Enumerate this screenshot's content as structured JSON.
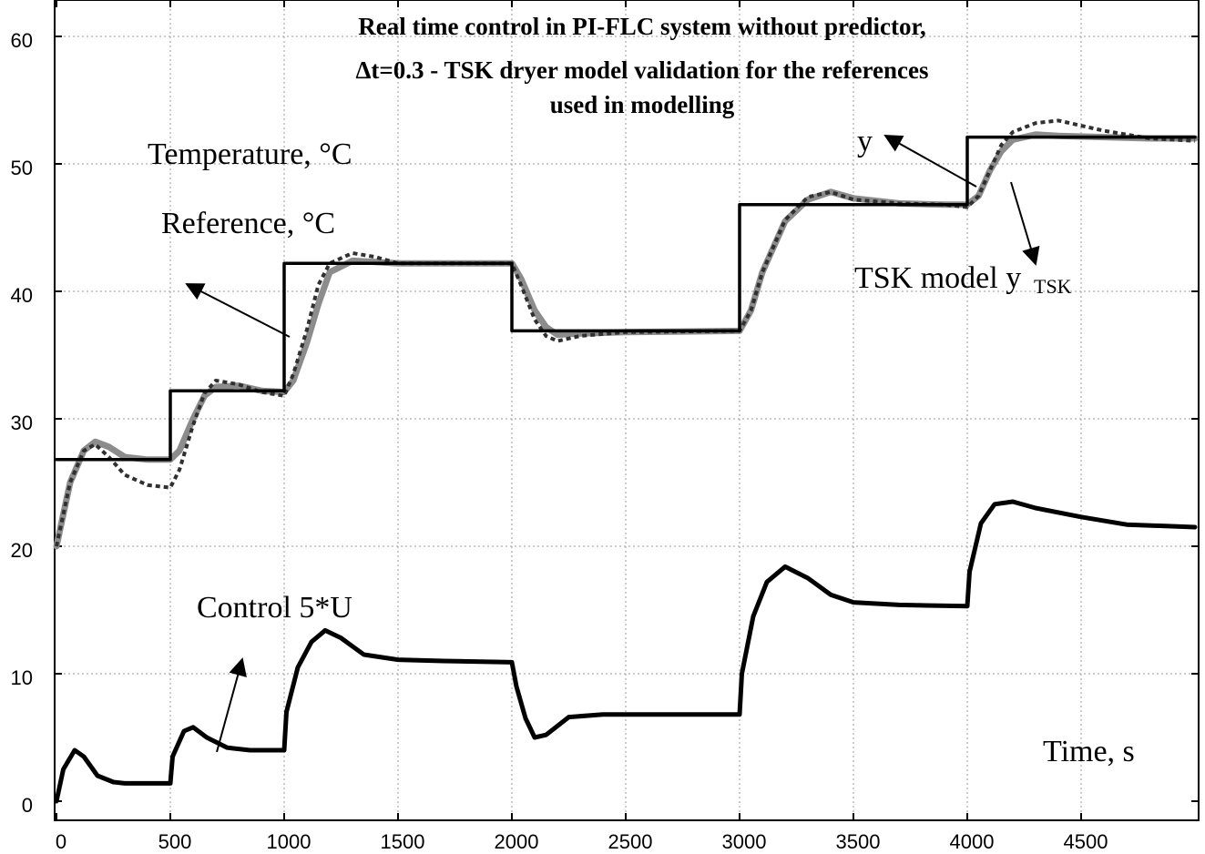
{
  "chart_data": {
    "type": "line",
    "title_lines": [
      "Real time control in PI-FLC system without predictor,",
      "Δt=0.3 - TSK dryer model validation for the references",
      "used in modelling"
    ],
    "xlim": [
      0,
      5000
    ],
    "ylim": [
      0,
      65
    ],
    "x_ticks": [
      0,
      500,
      1000,
      1500,
      2000,
      2500,
      3000,
      3500,
      4000,
      4500
    ],
    "x_tick_labels": [
      "0",
      "500",
      "1000",
      "1500",
      "2000",
      "2500",
      "3000",
      "3500",
      "4000",
      "4500"
    ],
    "y_ticks": [
      0,
      10,
      20,
      30,
      40,
      50,
      60
    ],
    "y_tick_labels": [
      "0",
      "10",
      "20",
      "30",
      "40",
      "50",
      "60"
    ],
    "grid": true,
    "annotations": {
      "temperature": "Temperature, °C",
      "reference": "Reference, °C",
      "y": "y",
      "tsk_model": "TSK model y",
      "tsk_sub": "TSK",
      "control": "Control 5*U",
      "time": "Time, s"
    },
    "series": [
      {
        "style": "reference-step",
        "color": "#000000",
        "x": [
          0,
          500,
          500,
          1000,
          1000,
          2000,
          2000,
          3000,
          3000,
          4000,
          4000,
          5000
        ],
        "y": [
          26.8,
          26.8,
          32.2,
          32.2,
          42.2,
          42.2,
          36.9,
          36.9,
          46.8,
          46.8,
          52.1,
          52.1
        ]
      },
      {
        "style": "temperature-y",
        "color": "#8c8c8c",
        "x": [
          0,
          60,
          120,
          170,
          230,
          300,
          400,
          500,
          540,
          600,
          650,
          700,
          800,
          900,
          1000,
          1040,
          1100,
          1150,
          1200,
          1300,
          1400,
          1500,
          1700,
          2000,
          2040,
          2100,
          2150,
          2200,
          2300,
          2500,
          3000,
          3050,
          3100,
          3200,
          3300,
          3400,
          3500,
          3700,
          3900,
          4000,
          4050,
          4100,
          4150,
          4200,
          4300,
          4400,
          4600,
          4800,
          5000
        ],
        "y": [
          20,
          25,
          27.5,
          28.2,
          27.8,
          27,
          26.8,
          26.8,
          27.5,
          30,
          31.8,
          32.5,
          32.6,
          32.2,
          32.1,
          33,
          36,
          39,
          41.5,
          42.4,
          42.3,
          42.2,
          42.2,
          42.2,
          41,
          38.5,
          37.2,
          36.6,
          36.7,
          36.8,
          36.9,
          38.5,
          41.5,
          45.5,
          47.2,
          47.8,
          47.3,
          46.9,
          46.8,
          46.8,
          47.5,
          49.5,
          51,
          51.9,
          52.3,
          52.2,
          52.1,
          52.0,
          52.0
        ]
      },
      {
        "style": "tsk-model-dotted",
        "color": "#303030",
        "x": [
          0,
          60,
          120,
          170,
          230,
          300,
          400,
          500,
          540,
          600,
          650,
          700,
          800,
          900,
          1000,
          1040,
          1100,
          1150,
          1200,
          1300,
          1400,
          1500,
          1700,
          2000,
          2040,
          2100,
          2150,
          2200,
          2300,
          2500,
          3000,
          3050,
          3100,
          3200,
          3300,
          3400,
          3500,
          3700,
          3900,
          4000,
          4050,
          4100,
          4150,
          4200,
          4300,
          4400,
          4600,
          4800,
          5000
        ],
        "y": [
          20,
          25,
          27.5,
          28,
          27,
          25.6,
          24.8,
          24.6,
          26,
          29.5,
          32,
          33,
          32.7,
          32.1,
          31.8,
          33.5,
          37,
          40.5,
          42.2,
          43,
          42.7,
          42.2,
          42.2,
          42.2,
          40.5,
          37.8,
          36.5,
          36.1,
          36.5,
          36.8,
          36.9,
          38.5,
          41.5,
          45.6,
          47.4,
          47.8,
          47.2,
          46.9,
          46.8,
          46.6,
          47.5,
          49.5,
          51.5,
          52.5,
          53.2,
          53.4,
          52.6,
          52.0,
          51.8
        ]
      },
      {
        "style": "control",
        "color": "#000000",
        "x": [
          0,
          30,
          80,
          120,
          180,
          250,
          300,
          400,
          500,
          510,
          560,
          600,
          660,
          750,
          850,
          1000,
          1010,
          1060,
          1120,
          1180,
          1250,
          1350,
          1500,
          1700,
          2000,
          2020,
          2060,
          2100,
          2150,
          2250,
          2400,
          2700,
          3000,
          3010,
          3060,
          3120,
          3200,
          3300,
          3400,
          3500,
          3700,
          4000,
          4010,
          4060,
          4120,
          4200,
          4300,
          4500,
          4700,
          5000
        ],
        "y": [
          0,
          2.5,
          4.0,
          3.5,
          2,
          1.5,
          1.4,
          1.4,
          1.4,
          3.5,
          5.5,
          5.8,
          5.0,
          4.2,
          4.0,
          4.0,
          7,
          10.5,
          12.5,
          13.4,
          12.8,
          11.5,
          11.1,
          11.0,
          10.9,
          9,
          6.5,
          5,
          5.2,
          6.6,
          6.8,
          6.8,
          6.8,
          10,
          14.5,
          17.2,
          18.4,
          17.5,
          16.2,
          15.6,
          15.4,
          15.3,
          18,
          21.8,
          23.3,
          23.5,
          23,
          22.3,
          21.7,
          21.5
        ]
      }
    ]
  }
}
